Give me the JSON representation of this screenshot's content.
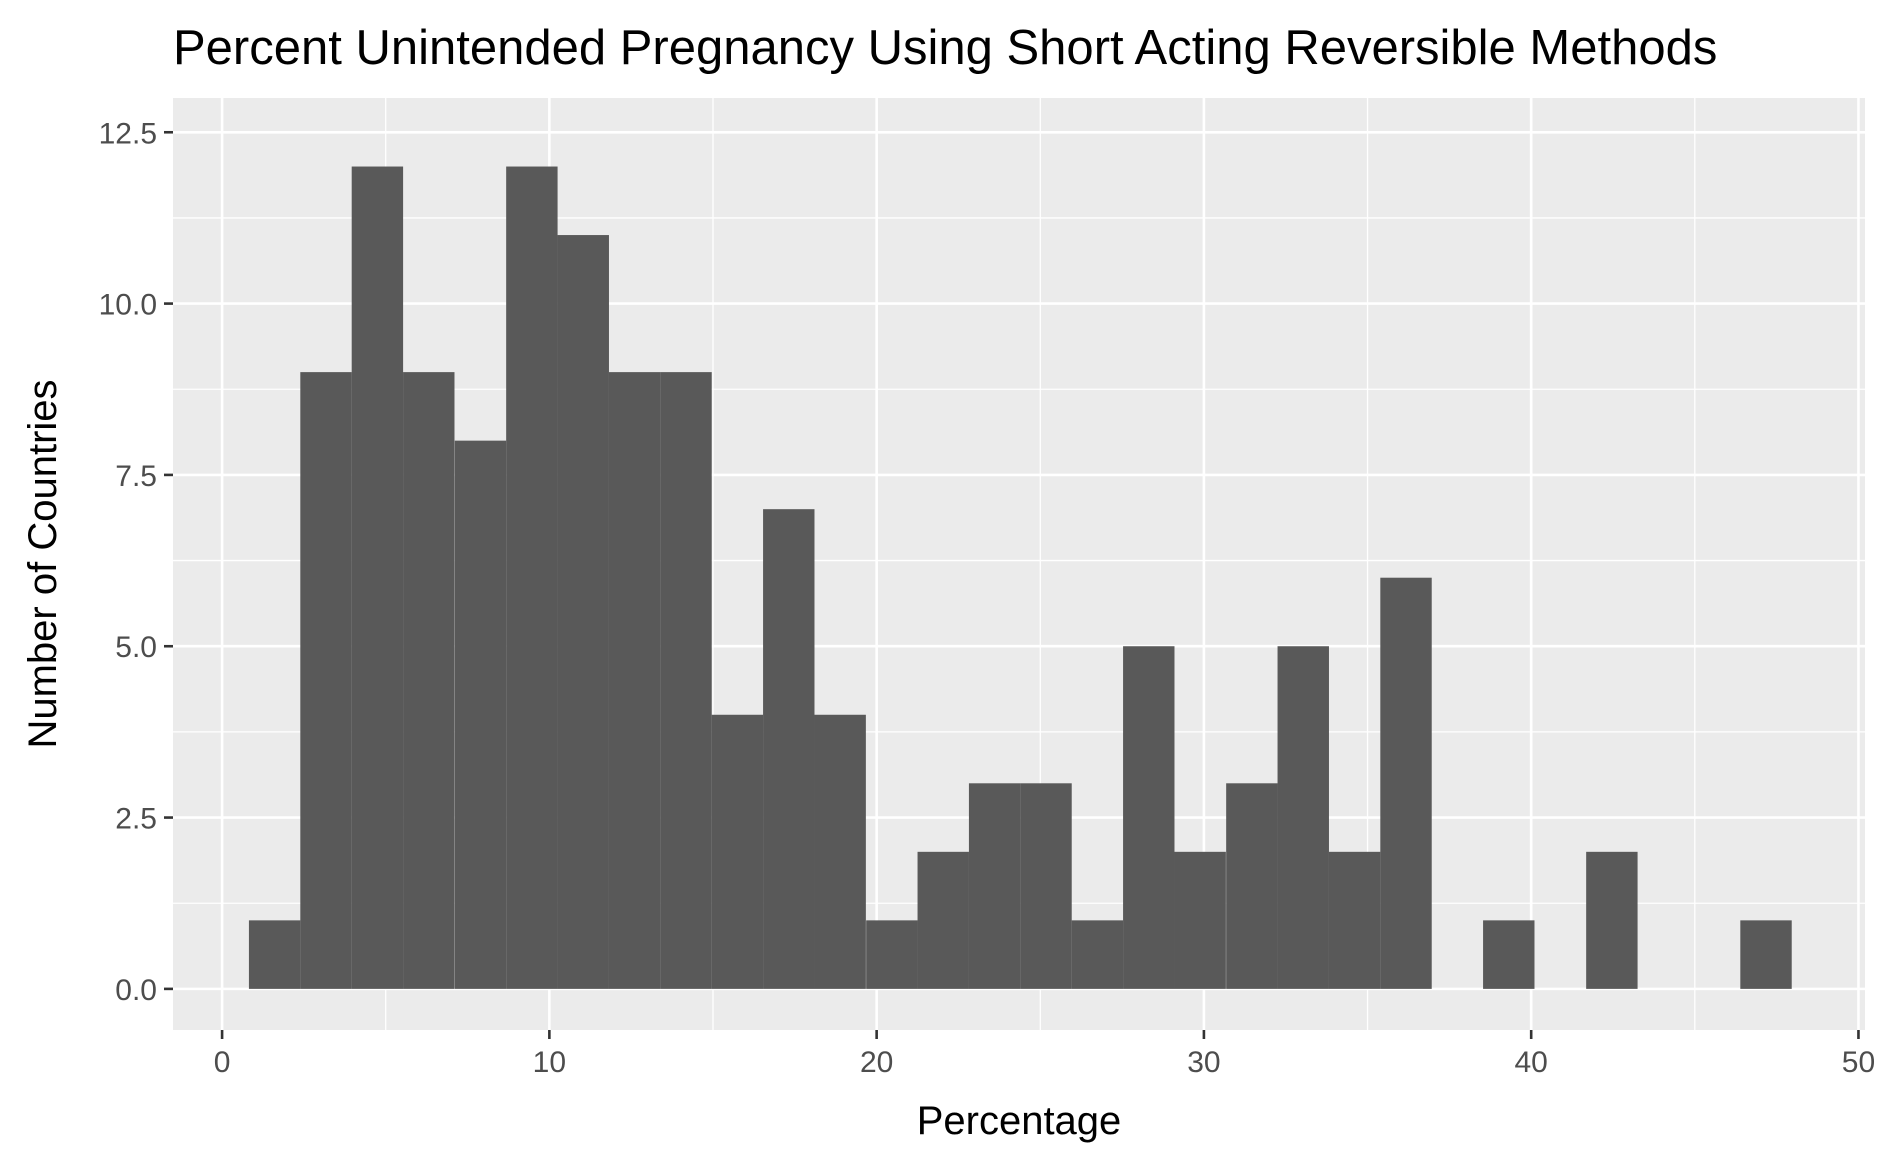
{
  "chart_data": {
    "type": "bar",
    "title": "Percent Unintended Pregnancy Using Short Acting Reversible Methods",
    "xlabel": "Percentage",
    "ylabel": "Number of Countries",
    "xlim": [
      -1.5,
      50.2
    ],
    "ylim": [
      -0.6,
      13.0
    ],
    "x_ticks": [
      {
        "value": 0,
        "label": "0"
      },
      {
        "value": 10,
        "label": "10"
      },
      {
        "value": 20,
        "label": "20"
      },
      {
        "value": 30,
        "label": "30"
      },
      {
        "value": 40,
        "label": "40"
      },
      {
        "value": 50,
        "label": "50"
      }
    ],
    "y_ticks": [
      {
        "value": 0,
        "label": "0.0"
      },
      {
        "value": 2.5,
        "label": "2.5"
      },
      {
        "value": 5,
        "label": "5.0"
      },
      {
        "value": 7.5,
        "label": "7.5"
      },
      {
        "value": 10,
        "label": "10.0"
      },
      {
        "value": 12.5,
        "label": "12.5"
      }
    ],
    "bin_width": 1.571,
    "bins": [
      {
        "start": 0.82,
        "count": 1
      },
      {
        "start": 2.39,
        "count": 9
      },
      {
        "start": 3.96,
        "count": 12
      },
      {
        "start": 5.53,
        "count": 9
      },
      {
        "start": 7.11,
        "count": 8
      },
      {
        "start": 8.68,
        "count": 12
      },
      {
        "start": 10.25,
        "count": 11
      },
      {
        "start": 11.82,
        "count": 9
      },
      {
        "start": 13.39,
        "count": 9
      },
      {
        "start": 14.96,
        "count": 4
      },
      {
        "start": 16.53,
        "count": 7
      },
      {
        "start": 18.1,
        "count": 4
      },
      {
        "start": 19.68,
        "count": 1
      },
      {
        "start": 21.25,
        "count": 2
      },
      {
        "start": 22.82,
        "count": 3
      },
      {
        "start": 24.39,
        "count": 3
      },
      {
        "start": 25.96,
        "count": 1
      },
      {
        "start": 27.53,
        "count": 5
      },
      {
        "start": 29.1,
        "count": 2
      },
      {
        "start": 30.68,
        "count": 3
      },
      {
        "start": 32.25,
        "count": 5
      },
      {
        "start": 33.82,
        "count": 2
      },
      {
        "start": 35.39,
        "count": 6
      },
      {
        "start": 36.96,
        "count": 0
      },
      {
        "start": 38.53,
        "count": 1
      },
      {
        "start": 40.1,
        "count": 0
      },
      {
        "start": 41.68,
        "count": 2
      },
      {
        "start": 43.25,
        "count": 0
      },
      {
        "start": 44.82,
        "count": 0
      },
      {
        "start": 46.39,
        "count": 1
      }
    ],
    "grid": true,
    "legend": "none",
    "colors": {
      "panel": "#EBEBEB",
      "grid_major": "#FFFFFF",
      "bar_fill": "#595959",
      "tick_text": "#4D4D4D",
      "tick_mark": "#333333"
    }
  }
}
